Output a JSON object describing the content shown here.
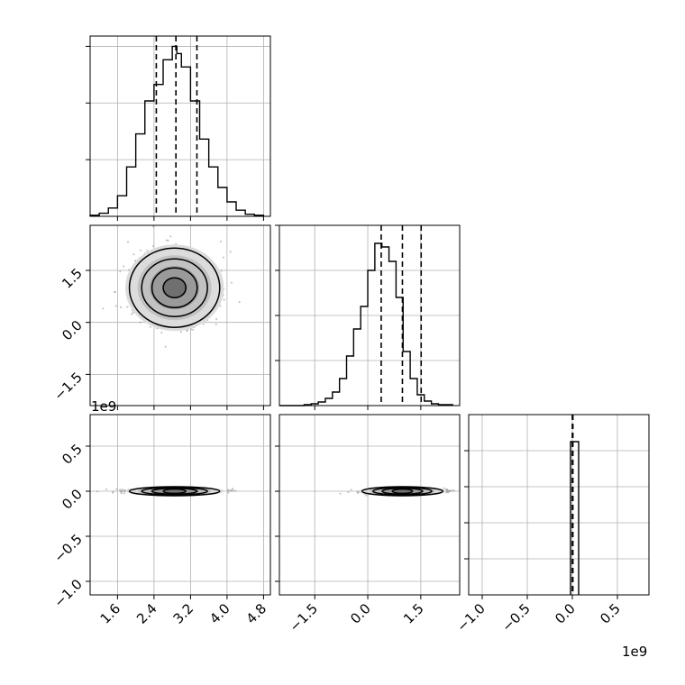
{
  "chart_data": {
    "type": "corner",
    "grid": true,
    "axis_offsets": {
      "row1_y": "1e9",
      "col2_x": "1e9"
    },
    "histograms": [
      {
        "position": "diagonal-1",
        "x_range": [
          1.0,
          4.95
        ],
        "bin_edges": [
          1.0,
          1.2,
          1.4,
          1.6,
          1.8,
          2.0,
          2.2,
          2.4,
          2.6,
          2.8,
          2.9,
          3.0,
          3.2,
          3.4,
          3.6,
          3.8,
          4.0,
          4.2,
          4.4,
          4.6,
          4.8
        ],
        "counts": [
          1,
          3,
          8,
          20,
          48,
          80,
          112,
          128,
          152,
          165,
          158,
          145,
          112,
          75,
          48,
          28,
          14,
          6,
          2,
          1
        ],
        "y_max": 175,
        "quantiles": [
          2.45,
          2.88,
          3.34
        ],
        "y_ticks": [
          55,
          110,
          165
        ]
      },
      {
        "position": "diagonal-2",
        "x_range": [
          -2.5,
          2.6
        ],
        "bin_edges": [
          -2.5,
          -1.8,
          -1.6,
          -1.4,
          -1.2,
          -1.0,
          -0.8,
          -0.6,
          -0.4,
          -0.2,
          0.0,
          0.2,
          0.4,
          0.6,
          0.8,
          1.0,
          1.2,
          1.4,
          1.6,
          1.8,
          2.0,
          2.2,
          2.4
        ],
        "counts": [
          0,
          1,
          2,
          4,
          8,
          15,
          30,
          55,
          85,
          110,
          150,
          180,
          176,
          160,
          120,
          60,
          30,
          12,
          5,
          2,
          1,
          1
        ],
        "y_max": 200,
        "quantiles": [
          0.38,
          0.98,
          1.51
        ],
        "y_ticks": [
          50,
          100,
          150,
          200
        ]
      },
      {
        "position": "diagonal-3",
        "x_range": [
          -1.15,
          0.85
        ],
        "bin_edges": [
          -0.02,
          0.07
        ],
        "counts": [
          170
        ],
        "y_max": 200,
        "quantiles": [
          0.0,
          0.003,
          0.006
        ],
        "y_ticks": [
          40,
          80,
          120,
          160
        ]
      }
    ],
    "scatter_panels": [
      {
        "position": "row-2-col-1",
        "x_range": [
          1.0,
          4.95
        ],
        "y_range": [
          -2.4,
          2.8
        ],
        "center": [
          2.85,
          1.0
        ],
        "spread": [
          0.45,
          0.52
        ],
        "contour_levels": [
          0.55,
          1.1,
          1.6,
          2.2
        ]
      },
      {
        "position": "row-3-col-1",
        "x_range": [
          1.0,
          4.95
        ],
        "y_range": [
          -1.15,
          0.85
        ],
        "center": [
          2.85,
          0.0
        ],
        "spread": [
          0.45,
          0.012
        ],
        "contour_levels": [
          0.55,
          1.1,
          1.6,
          2.2
        ]
      },
      {
        "position": "row-3-col-2",
        "x_range": [
          -2.5,
          2.6
        ],
        "y_range": [
          -1.15,
          0.85
        ],
        "center": [
          0.98,
          0.0
        ],
        "spread": [
          0.52,
          0.012
        ],
        "contour_levels": [
          0.55,
          1.1,
          1.6,
          2.2
        ]
      }
    ],
    "tick_labels": {
      "col1_x": [
        "1.6",
        "2.4",
        "3.2",
        "4.0",
        "4.8"
      ],
      "col2_x": [
        "−1.5",
        "0.0",
        "1.5"
      ],
      "col3_x": [
        "−1.0",
        "−0.5",
        "0.0",
        "0.5"
      ],
      "row2_y": [
        "1.5",
        "0.0",
        "−1.5"
      ],
      "row3_y": [
        "0.5",
        "0.0",
        "−0.5",
        "−1.0"
      ]
    },
    "tick_values": {
      "col1_x": [
        1.6,
        2.4,
        3.2,
        4.0,
        4.8
      ],
      "col2_x": [
        -1.5,
        0.0,
        1.5
      ],
      "col3_x": [
        -1.0,
        -0.5,
        0.0,
        0.5
      ],
      "row2_y": [
        1.5,
        0.0,
        -1.5
      ],
      "row3_y": [
        0.5,
        0.0,
        -0.5,
        -1.0
      ]
    }
  }
}
